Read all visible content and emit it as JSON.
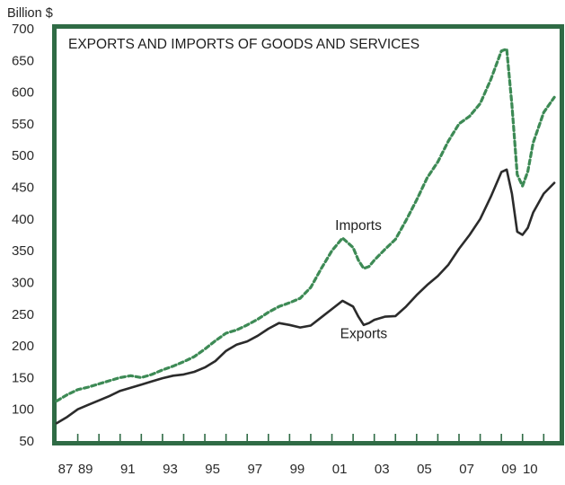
{
  "chart_data": {
    "type": "line",
    "title": "EXPORTS AND IMPORTS OF GOODS AND SERVICES",
    "ylabel": "Billion $",
    "xlabel": "",
    "x_tick_labels": [
      "87",
      "89",
      "91",
      "93",
      "95",
      "97",
      "99",
      "01",
      "03",
      "05",
      "07",
      "09",
      "10"
    ],
    "y_ticks": [
      50,
      100,
      150,
      200,
      250,
      300,
      350,
      400,
      450,
      500,
      550,
      600,
      650,
      700
    ],
    "xlim": [
      1987.0,
      2010.75
    ],
    "ylim": [
      50,
      700
    ],
    "grid": false,
    "legend": "inline labels",
    "colors": {
      "frame": "#2f6b45",
      "exports": "#2b2b2b",
      "imports": "#3d8a55"
    },
    "series": [
      {
        "name": "Exports",
        "style": "solid",
        "points": [
          [
            1987.0,
            78
          ],
          [
            1987.5,
            88
          ],
          [
            1988.0,
            100
          ],
          [
            1988.5,
            107
          ],
          [
            1989.0,
            114
          ],
          [
            1989.5,
            121
          ],
          [
            1990.0,
            129
          ],
          [
            1990.5,
            134
          ],
          [
            1991.0,
            139
          ],
          [
            1991.5,
            144
          ],
          [
            1992.0,
            149
          ],
          [
            1992.5,
            153
          ],
          [
            1993.0,
            155
          ],
          [
            1993.5,
            159
          ],
          [
            1994.0,
            166
          ],
          [
            1994.5,
            176
          ],
          [
            1995.0,
            192
          ],
          [
            1995.5,
            202
          ],
          [
            1996.0,
            207
          ],
          [
            1996.5,
            216
          ],
          [
            1997.0,
            227
          ],
          [
            1997.5,
            236
          ],
          [
            1998.0,
            233
          ],
          [
            1998.5,
            229
          ],
          [
            1999.0,
            232
          ],
          [
            1999.5,
            245
          ],
          [
            2000.0,
            258
          ],
          [
            2000.5,
            271
          ],
          [
            2001.0,
            262
          ],
          [
            2001.25,
            246
          ],
          [
            2001.5,
            233
          ],
          [
            2001.75,
            236
          ],
          [
            2002.0,
            241
          ],
          [
            2002.5,
            246
          ],
          [
            2003.0,
            247
          ],
          [
            2003.5,
            262
          ],
          [
            2004.0,
            280
          ],
          [
            2004.5,
            296
          ],
          [
            2005.0,
            310
          ],
          [
            2005.5,
            328
          ],
          [
            2006.0,
            353
          ],
          [
            2006.5,
            375
          ],
          [
            2007.0,
            400
          ],
          [
            2007.5,
            435
          ],
          [
            2008.0,
            474
          ],
          [
            2008.25,
            478
          ],
          [
            2008.5,
            440
          ],
          [
            2008.75,
            380
          ],
          [
            2009.0,
            375
          ],
          [
            2009.25,
            386
          ],
          [
            2009.5,
            410
          ],
          [
            2010.0,
            440
          ],
          [
            2010.5,
            457
          ]
        ]
      },
      {
        "name": "Imports",
        "style": "dashed",
        "points": [
          [
            1987.0,
            113
          ],
          [
            1987.5,
            123
          ],
          [
            1988.0,
            131
          ],
          [
            1988.5,
            135
          ],
          [
            1989.0,
            140
          ],
          [
            1989.5,
            145
          ],
          [
            1990.0,
            150
          ],
          [
            1990.5,
            153
          ],
          [
            1991.0,
            150
          ],
          [
            1991.5,
            155
          ],
          [
            1992.0,
            162
          ],
          [
            1992.5,
            168
          ],
          [
            1993.0,
            175
          ],
          [
            1993.5,
            183
          ],
          [
            1994.0,
            195
          ],
          [
            1994.5,
            208
          ],
          [
            1995.0,
            220
          ],
          [
            1995.5,
            225
          ],
          [
            1996.0,
            233
          ],
          [
            1996.5,
            242
          ],
          [
            1997.0,
            253
          ],
          [
            1997.5,
            262
          ],
          [
            1998.0,
            268
          ],
          [
            1998.5,
            275
          ],
          [
            1999.0,
            292
          ],
          [
            1999.5,
            322
          ],
          [
            2000.0,
            350
          ],
          [
            2000.5,
            370
          ],
          [
            2001.0,
            355
          ],
          [
            2001.25,
            335
          ],
          [
            2001.5,
            322
          ],
          [
            2001.75,
            325
          ],
          [
            2002.0,
            335
          ],
          [
            2002.5,
            352
          ],
          [
            2003.0,
            368
          ],
          [
            2003.5,
            398
          ],
          [
            2004.0,
            430
          ],
          [
            2004.5,
            465
          ],
          [
            2005.0,
            490
          ],
          [
            2005.5,
            523
          ],
          [
            2006.0,
            550
          ],
          [
            2006.5,
            562
          ],
          [
            2007.0,
            582
          ],
          [
            2007.5,
            620
          ],
          [
            2008.0,
            665
          ],
          [
            2008.25,
            668
          ],
          [
            2008.5,
            580
          ],
          [
            2008.75,
            470
          ],
          [
            2009.0,
            452
          ],
          [
            2009.25,
            475
          ],
          [
            2009.5,
            520
          ],
          [
            2010.0,
            568
          ],
          [
            2010.5,
            592
          ]
        ]
      }
    ],
    "annotations": [
      {
        "text": "Imports",
        "x": 2001.25,
        "y": 383,
        "series": "Imports"
      },
      {
        "text": "Exports",
        "x": 2001.5,
        "y": 212,
        "series": "Exports"
      }
    ]
  }
}
